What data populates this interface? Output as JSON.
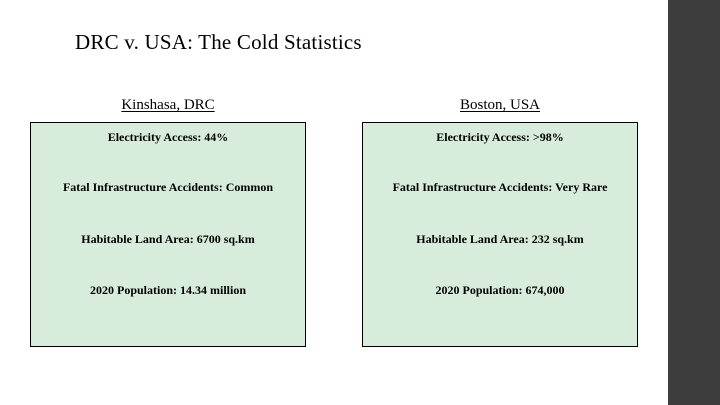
{
  "slide": {
    "title": "DRC v. USA: The Cold Statistics"
  },
  "columns": [
    {
      "header": "Kinshasa, DRC",
      "stats": [
        "Electricity Access: 44%",
        "Fatal Infrastructure Accidents: Common",
        "Habitable Land Area: 6700 sq.km",
        "2020 Population: 14.34 million"
      ]
    },
    {
      "header": "Boston, USA",
      "stats": [
        "Electricity Access: >98%",
        "Fatal Infrastructure Accidents: Very Rare",
        "Habitable Land Area: 232 sq.km",
        "2020 Population: 674,000"
      ]
    }
  ],
  "colors": {
    "box_fill": "#d7ecdb",
    "box_border": "#000000",
    "side_panel": "#3d3d3d",
    "text": "#000000"
  }
}
